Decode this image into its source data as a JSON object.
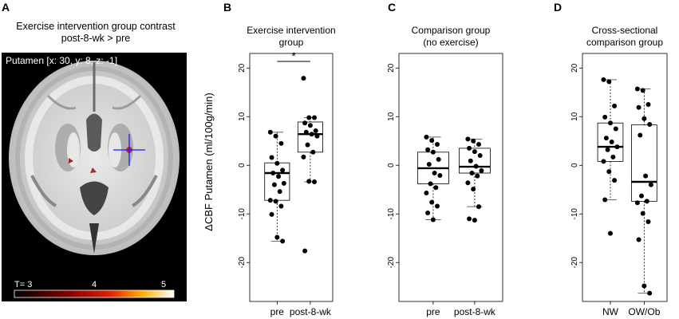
{
  "panelA": {
    "letter": "A",
    "title_line1": "Exercise intervention group contrast",
    "title_line2": "post-8-wk > pre",
    "coord_label": "Putamen [x: 30, y: 8, z: -1]",
    "colorbar_min": "T= 3",
    "colorbar_mid": "4",
    "colorbar_max": "5",
    "colors": {
      "background": "#000000",
      "crosshair": "#1a1aff",
      "blob": "#c03030"
    }
  },
  "ylabel": "ΔCBF Putamen (ml/100g/min)",
  "chart_data": [
    {
      "type": "box",
      "letter": "B",
      "title": [
        "Exercise intervention",
        "group"
      ],
      "categories": [
        "pre",
        "post-8-wk"
      ],
      "ylim": [
        -28,
        23
      ],
      "yticks": [
        -20,
        -10,
        0,
        10,
        20
      ],
      "significance": "*",
      "boxes": [
        {
          "q1": -7.2,
          "median": -1.6,
          "q3": 0.5,
          "whisker_low": -15.6,
          "whisker_high": 6.8
        },
        {
          "q1": 2.7,
          "median": 6.4,
          "q3": 8.9,
          "whisker_low": -3.4,
          "whisker_high": 9.8
        }
      ],
      "points": [
        [
          6.8,
          6.0,
          4.5,
          1.6,
          0.4,
          -1.0,
          -1.6,
          -2.3,
          -3.7,
          -4.0,
          -5.4,
          -7.2,
          -7.4,
          -8.4,
          -10.1,
          -14.8,
          -15.6
        ],
        [
          17.9,
          9.8,
          9.8,
          8.7,
          8.2,
          7.1,
          6.8,
          6.4,
          6.0,
          4.2,
          2.7,
          1.7,
          -3.3,
          -3.4,
          -17.6
        ]
      ]
    },
    {
      "type": "box",
      "letter": "C",
      "title": [
        "Comparison group",
        "(no exercise)"
      ],
      "categories": [
        "pre",
        "post-8-wk"
      ],
      "ylim": [
        -28,
        23
      ],
      "yticks": [
        -20,
        -10,
        0,
        10,
        20
      ],
      "boxes": [
        {
          "q1": -3.8,
          "median": -0.6,
          "q3": 2.7,
          "whisker_low": -11.2,
          "whisker_high": 5.8
        },
        {
          "q1": -1.6,
          "median": -0.3,
          "q3": 3.5,
          "whisker_low": -8.5,
          "whisker_high": 5.4
        }
      ],
      "points": [
        [
          5.8,
          5.1,
          4.3,
          3.2,
          2.7,
          1.2,
          0.2,
          -1.6,
          -2.1,
          -3.8,
          -4.6,
          -5.7,
          -7.6,
          -8.4,
          -9.8,
          -11.2
        ],
        [
          5.4,
          5.0,
          4.3,
          3.5,
          2.8,
          2.0,
          0.9,
          -0.2,
          -1.1,
          -1.6,
          -2.2,
          -3.6,
          -4.9,
          -8.5,
          -11.0,
          -11.3
        ]
      ]
    },
    {
      "type": "box",
      "letter": "D",
      "title": [
        "Cross-sectional",
        "comparison group"
      ],
      "categories": [
        "NW",
        "OW/Ob"
      ],
      "ylim": [
        -28,
        23
      ],
      "yticks": [
        -20,
        -10,
        0,
        10,
        20
      ],
      "boxes": [
        {
          "q1": 0.8,
          "median": 3.8,
          "q3": 8.7,
          "whisker_low": -7.1,
          "whisker_high": 17.6
        },
        {
          "q1": -7.4,
          "median": -3.4,
          "q3": 8.3,
          "whisker_low": -26.3,
          "whisker_high": 15.7
        }
      ],
      "points": [
        [
          17.6,
          17.2,
          12.2,
          9.9,
          8.7,
          7.5,
          5.6,
          4.8,
          3.8,
          3.2,
          1.7,
          0.8,
          -1.3,
          -3.1,
          -7.1,
          -14.0
        ],
        [
          15.7,
          15.4,
          12.5,
          11.9,
          9.6,
          8.4,
          6.2,
          -2.2,
          -4.0,
          -6.3,
          -7.4,
          -7.7,
          -9.9,
          -11.6,
          -15.3,
          -24.8,
          -26.3
        ]
      ]
    }
  ]
}
